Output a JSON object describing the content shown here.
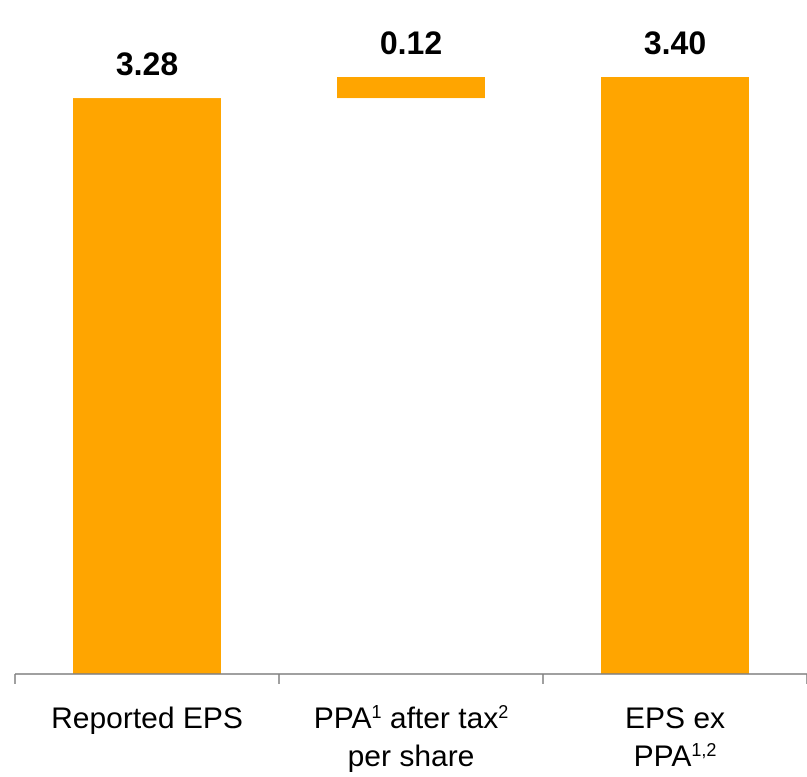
{
  "chart_data": {
    "type": "bar",
    "subtype": "waterfall",
    "categories": [
      {
        "lines": [
          [
            {
              "t": "Reported EPS"
            }
          ]
        ]
      },
      {
        "lines": [
          [
            {
              "t": "PPA"
            },
            {
              "t": "1",
              "sup": true
            },
            {
              "t": " after tax"
            },
            {
              "t": "2",
              "sup": true
            }
          ],
          [
            {
              "t": "per share"
            }
          ]
        ]
      },
      {
        "lines": [
          [
            {
              "t": "EPS ex"
            }
          ],
          [
            {
              "t": "PPA"
            },
            {
              "t": "1,2",
              "sup": true
            }
          ]
        ]
      }
    ],
    "bars": [
      {
        "base": 0,
        "value": 3.28,
        "label": "3.28"
      },
      {
        "base": 3.28,
        "value": 0.12,
        "label": "0.12"
      },
      {
        "base": 0,
        "value": 3.4,
        "label": "3.40"
      }
    ],
    "ylim": [
      0,
      3.4
    ],
    "bar_color": "#FFA500",
    "axis_color": "#808080",
    "grid": false,
    "legend": "none",
    "title": "",
    "xlabel": "",
    "ylabel": ""
  }
}
